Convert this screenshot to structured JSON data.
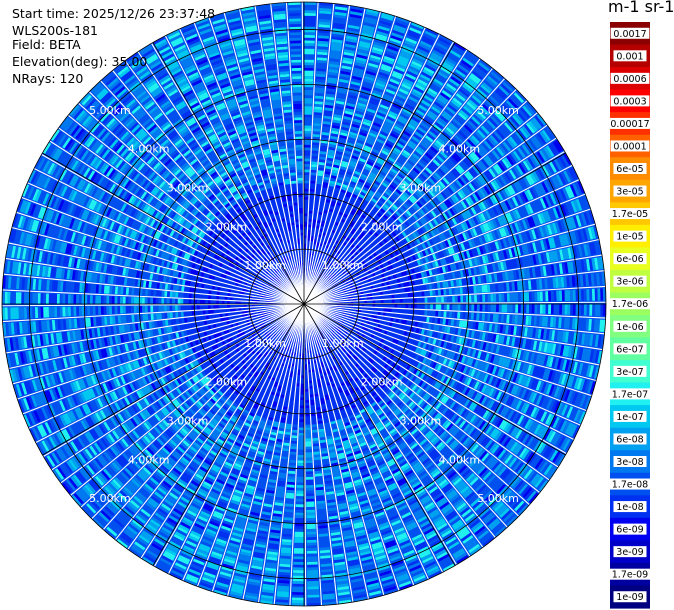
{
  "header": {
    "start_time": "Start time: 2025/12/26 23:37:48",
    "instrument": "WLS200s-181",
    "field": "Field: BETA",
    "elevation": "Elevation(deg): 35.00",
    "nrays": "NRays: 120"
  },
  "colorbar": {
    "units_label": "m-1 sr-1",
    "labels": [
      "0.0017",
      "0.001",
      "0.0006",
      "0.0003",
      "0.00017",
      "0.0001",
      "6e-05",
      "3e-05",
      "1.7e-05",
      "1e-05",
      "6e-06",
      "3e-06",
      "1.7e-06",
      "1e-06",
      "6e-07",
      "3e-07",
      "1.7e-07",
      "1e-07",
      "6e-08",
      "3e-08",
      "1.7e-08",
      "1e-08",
      "6e-09",
      "3e-09",
      "1.7e-09",
      "1e-09"
    ],
    "colors": [
      "#8b0000",
      "#b50000",
      "#dd0000",
      "#ff0000",
      "#ff3000",
      "#ff6000",
      "#ff8c00",
      "#ffa500",
      "#ffc800",
      "#ffee00",
      "#e8ff20",
      "#c0ff40",
      "#9cff60",
      "#80ff80",
      "#60ffa0",
      "#40ffd0",
      "#20f0f0",
      "#00c8f0",
      "#00a0f0",
      "#0078f0",
      "#0050f0",
      "#0030f0",
      "#0000f0",
      "#0000c8",
      "#0000a0",
      "#000080"
    ]
  },
  "chart_data": {
    "type": "heatmap",
    "projection": "polar",
    "field": "BETA",
    "elevation_deg": 35.0,
    "nrays": 120,
    "range_max_km": 5.5,
    "range_rings_km": [
      1,
      2,
      3,
      4,
      5
    ],
    "ring_labels": [
      "1.00km",
      "2.00km",
      "3.00km",
      "4.00km",
      "5.00km"
    ],
    "azimuth_lines_deg": [
      0,
      30,
      60,
      90,
      120,
      150,
      180,
      210,
      240,
      270,
      300,
      330
    ],
    "dominant_value_range": [
      3e-09,
      1e-07
    ]
  }
}
